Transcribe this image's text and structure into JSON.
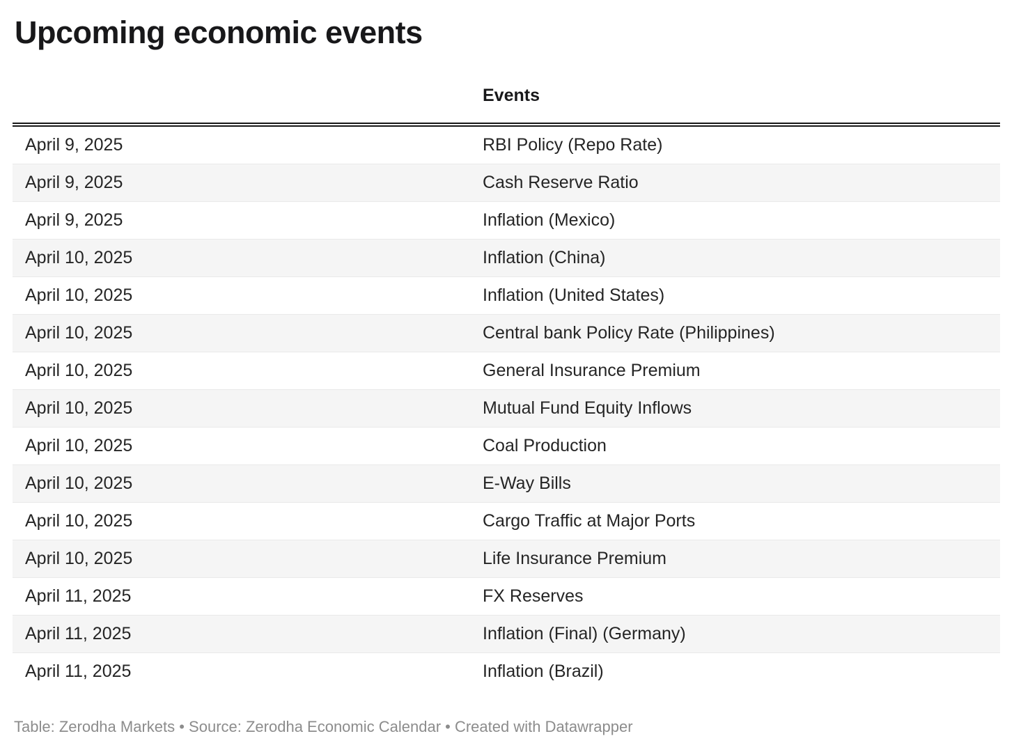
{
  "title": "Upcoming economic events",
  "chart_data": {
    "type": "table",
    "title": "Upcoming economic events",
    "columns": [
      "",
      "Events"
    ],
    "rows": [
      [
        "April 9, 2025",
        "RBI Policy (Repo Rate)"
      ],
      [
        "April 9, 2025",
        "Cash Reserve Ratio"
      ],
      [
        "April 9, 2025",
        "Inflation (Mexico)"
      ],
      [
        "April 10, 2025",
        "Inflation (China)"
      ],
      [
        "April 10, 2025",
        "Inflation (United States)"
      ],
      [
        "April 10, 2025",
        "Central bank Policy Rate (Philippines)"
      ],
      [
        "April 10, 2025",
        "General Insurance Premium"
      ],
      [
        "April 10, 2025",
        "Mutual Fund Equity Inflows"
      ],
      [
        "April 10, 2025",
        "Coal Production"
      ],
      [
        "April 10, 2025",
        "E-Way Bills"
      ],
      [
        "April 10, 2025",
        "Cargo Traffic at Major Ports"
      ],
      [
        "April 10, 2025",
        "Life Insurance Premium"
      ],
      [
        "April 11, 2025",
        "FX Reserves"
      ],
      [
        "April 11, 2025",
        "Inflation (Final) (Germany)"
      ],
      [
        "April 11, 2025",
        "Inflation (Brazil)"
      ]
    ],
    "layout": {
      "striped": true,
      "stripe_rows": "even",
      "grid": "horizontal-dividers",
      "header_rule": "double-line"
    }
  },
  "footer": {
    "full_text": "Table: Zerodha Markets • Source: Zerodha Economic Calendar • Created with Datawrapper",
    "parts": [
      {
        "label": "Table: ",
        "link": false
      },
      {
        "label": "Zerodha Markets",
        "link": true
      },
      {
        "label": " • Source: ",
        "link": false
      },
      {
        "label": "Zerodha Economic Calendar",
        "link": true
      },
      {
        "label": " • Created with ",
        "link": false
      },
      {
        "label": "Datawrapper",
        "link": true
      }
    ]
  },
  "colors": {
    "title_text": "#18181a",
    "body_text": "#252525",
    "stripe": "#f5f5f5",
    "divider": "#e9e9e9",
    "header_rule": "#161616",
    "footer_text": "#8c8c8c",
    "background": "#ffffff"
  }
}
